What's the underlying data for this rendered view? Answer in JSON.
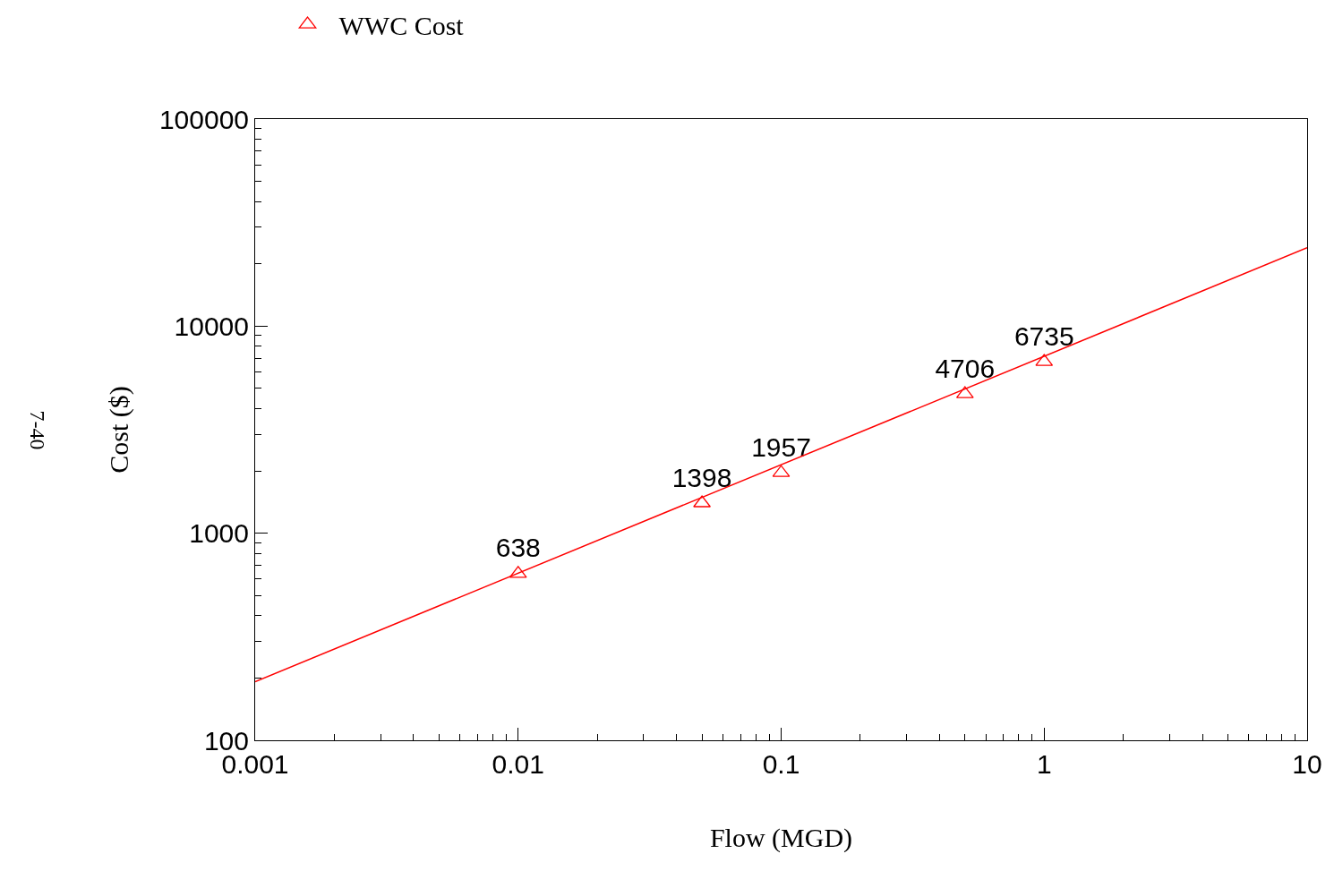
{
  "chart_data": {
    "type": "scatter",
    "xlabel": "Flow (MGD)",
    "ylabel": "Cost ($)",
    "log": "xy",
    "xlim": [
      0.001,
      10
    ],
    "xticks": [
      0.001,
      0.01,
      0.1,
      1,
      10
    ],
    "ylim": [
      100,
      100000
    ],
    "yticks": [
      100,
      1000,
      10000,
      100000
    ],
    "series": [
      {
        "name": "WWC Cost",
        "color": "#ff0000",
        "x": [
          0.01,
          0.05,
          0.1,
          0.5,
          1
        ],
        "values": [
          638,
          1398,
          1957,
          4706,
          6735
        ],
        "marker": "triangle",
        "data_labels": true
      },
      {
        "type": "line",
        "color": "#ff0000",
        "x": [
          0.001,
          10
        ],
        "values": [
          192,
          23900
        ],
        "marker": "none"
      }
    ],
    "legend": "top left",
    "annotations": [
      "7-40"
    ]
  }
}
